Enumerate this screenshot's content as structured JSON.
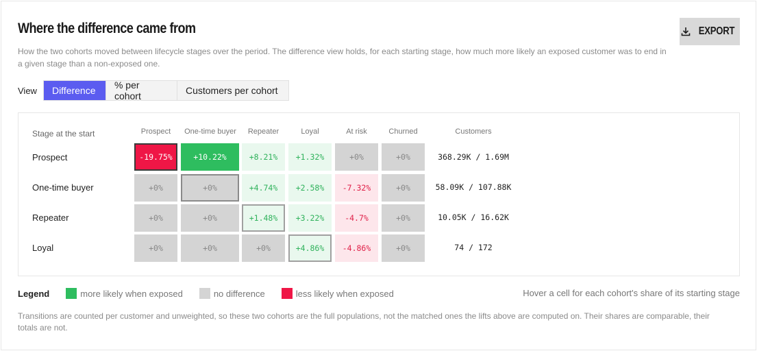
{
  "header": {
    "title": "Where the difference came from",
    "subtitle": "How the two cohorts moved between lifecycle stages over the period. The difference view holds, for each starting stage, how much more likely an exposed customer was to end in a given stage than a non-exposed one.",
    "export_label": "EXPORT",
    "export_icon": "download-icon"
  },
  "view": {
    "label": "View",
    "options": [
      "Difference",
      "% per cohort",
      "Customers per cohort"
    ],
    "selected": "Difference",
    "accent_color": "#5b5cf0"
  },
  "matrix": {
    "stage_header": "Stage at the start",
    "columns": [
      "Prospect",
      "One-time buyer",
      "Repeater",
      "Loyal",
      "At risk",
      "Churned"
    ],
    "customers_header": "Customers",
    "rows": [
      {
        "stage": "Prospect",
        "values": [
          "-19.75%",
          "+10.22%",
          "+8.21%",
          "+1.32%",
          "+0%",
          "+0%"
        ],
        "customers": "368.29K / 1.69M"
      },
      {
        "stage": "One-time buyer",
        "values": [
          "+0%",
          "+0%",
          "+4.74%",
          "+2.58%",
          "-7.32%",
          "+0%"
        ],
        "customers": "58.09K / 107.88K"
      },
      {
        "stage": "Repeater",
        "values": [
          "+0%",
          "+0%",
          "+1.48%",
          "+3.22%",
          "-4.7%",
          "+0%"
        ],
        "customers": "10.05K / 16.62K"
      },
      {
        "stage": "Loyal",
        "values": [
          "+0%",
          "+0%",
          "+0%",
          "+4.86%",
          "-4.86%",
          "+0%"
        ],
        "customers": "74 / 172"
      }
    ]
  },
  "legend": {
    "title": "Legend",
    "items": [
      {
        "label": "more likely when exposed",
        "color": "#2ebd5f"
      },
      {
        "label": "no difference",
        "color": "#d4d4d4"
      },
      {
        "label": "less likely when exposed",
        "color": "#ef1646"
      }
    ],
    "hover_note": "Hover a cell for each cohort's share of its starting stage"
  },
  "footnote": "Transitions are counted per customer and unweighted, so these two cohorts are the full populations, not the matched ones the lifts above are computed on. Their shares are comparable, their totals are not."
}
